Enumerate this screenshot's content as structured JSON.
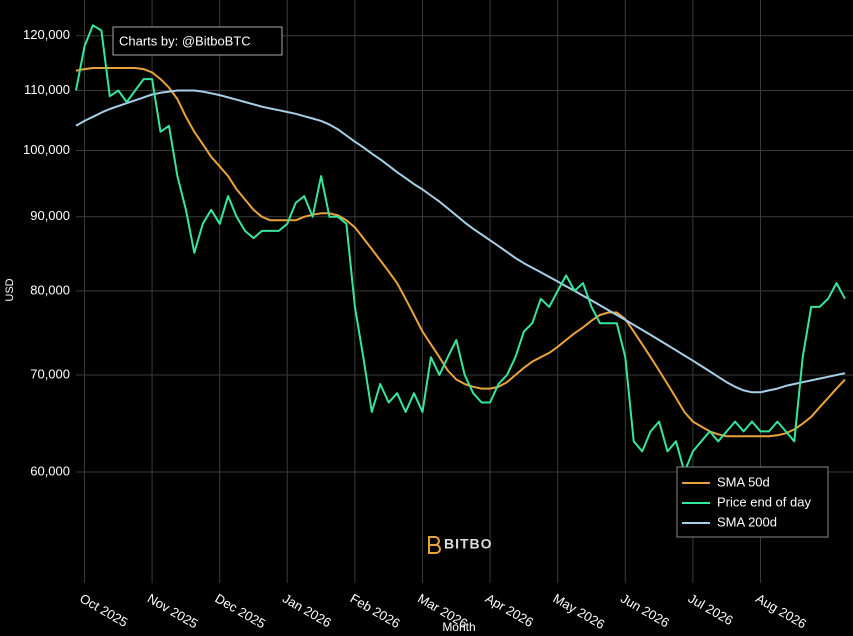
{
  "chart_data": {
    "type": "line",
    "annotation": "Charts by: @BitboBTC",
    "watermark": "BITBO",
    "ylabel": "USD",
    "xlabel": "Month",
    "yscale": "log",
    "grid": true,
    "legend": "lower right",
    "ylim": [
      50300,
      127000
    ],
    "yticks": [
      {
        "value": 60000,
        "label": "60,000"
      },
      {
        "value": 70000,
        "label": "70,000"
      },
      {
        "value": 80000,
        "label": "80,000"
      },
      {
        "value": 90000,
        "label": "90,000"
      },
      {
        "value": 100000,
        "label": "100,000"
      },
      {
        "value": 110000,
        "label": "110,000"
      },
      {
        "value": 120000,
        "label": "120,000"
      }
    ],
    "categories": [
      null,
      "Oct 2025",
      null,
      null,
      null,
      null,
      null,
      null,
      null,
      "Nov 2025",
      null,
      null,
      null,
      null,
      null,
      null,
      null,
      "Dec 2025",
      null,
      null,
      null,
      null,
      null,
      null,
      null,
      "Jan 2026",
      null,
      null,
      null,
      null,
      null,
      null,
      null,
      "Feb 2026",
      null,
      null,
      null,
      null,
      null,
      null,
      null,
      "Mar 2026",
      null,
      null,
      null,
      null,
      null,
      null,
      null,
      "Apr 2026",
      null,
      null,
      null,
      null,
      null,
      null,
      null,
      "May 2026",
      null,
      null,
      null,
      null,
      null,
      null,
      null,
      "Jun 2026",
      null,
      null,
      null,
      null,
      null,
      null,
      null,
      "Jul 2026",
      null,
      null,
      null,
      null,
      null,
      null,
      null,
      "Aug 2026",
      null,
      null,
      null,
      null,
      null,
      null,
      null,
      null,
      null,
      null
    ],
    "series": [
      {
        "name": "SMA 50d",
        "color": "#e8a33b",
        "values": [
          113500,
          113800,
          114000,
          114000,
          114000,
          114000,
          114000,
          114000,
          113800,
          113200,
          112000,
          110500,
          108500,
          105500,
          103000,
          101000,
          99000,
          97500,
          96000,
          94000,
          92500,
          91000,
          90000,
          89500,
          89500,
          89500,
          89500,
          90000,
          90300,
          90500,
          90500,
          90200,
          89500,
          88500,
          87000,
          85500,
          84000,
          82500,
          81000,
          79000,
          77000,
          75000,
          73500,
          72000,
          70500,
          69500,
          69000,
          68700,
          68500,
          68500,
          68700,
          69200,
          70000,
          70800,
          71500,
          72000,
          72500,
          73200,
          74000,
          74800,
          75500,
          76300,
          77000,
          77300,
          77300,
          76500,
          75000,
          73500,
          72000,
          70500,
          69000,
          67500,
          66000,
          65000,
          64500,
          64000,
          63700,
          63500,
          63500,
          63500,
          63500,
          63500,
          63500,
          63600,
          63800,
          64200,
          64800,
          65500,
          66500,
          67500,
          68500,
          69500
        ]
      },
      {
        "name": "Price end of day",
        "color": "#35e69b",
        "values": [
          110000,
          118000,
          122000,
          121000,
          109000,
          110000,
          108000,
          110000,
          112000,
          112000,
          103000,
          104000,
          96000,
          91000,
          85000,
          89000,
          91000,
          89000,
          93000,
          90000,
          88000,
          87000,
          88000,
          88000,
          88000,
          89000,
          92000,
          93000,
          90000,
          96000,
          90000,
          90000,
          89000,
          78000,
          72000,
          66000,
          69000,
          67000,
          68000,
          66000,
          68000,
          66000,
          72000,
          70000,
          72000,
          74000,
          70000,
          68000,
          67000,
          67000,
          69000,
          70000,
          72000,
          75000,
          76000,
          79000,
          78000,
          80000,
          82000,
          80000,
          81000,
          78000,
          76000,
          76000,
          76000,
          72000,
          63000,
          62000,
          64000,
          65000,
          62000,
          63000,
          60000,
          62000,
          63000,
          64000,
          63000,
          64000,
          65000,
          64000,
          65000,
          64000,
          64000,
          65000,
          64000,
          63000,
          72000,
          78000,
          78000,
          79000,
          81000,
          79000
        ]
      },
      {
        "name": "SMA 200d",
        "color": "#a6cfe8",
        "values": [
          104000,
          104800,
          105500,
          106200,
          106800,
          107300,
          107800,
          108300,
          108800,
          109300,
          109600,
          109800,
          110000,
          110000,
          110000,
          109800,
          109500,
          109200,
          108800,
          108400,
          108000,
          107600,
          107200,
          106900,
          106600,
          106300,
          106000,
          105600,
          105200,
          104800,
          104200,
          103400,
          102400,
          101400,
          100500,
          99500,
          98600,
          97600,
          96600,
          95700,
          94800,
          94000,
          93100,
          92200,
          91200,
          90200,
          89200,
          88300,
          87500,
          86700,
          85900,
          85100,
          84300,
          83600,
          83000,
          82400,
          81800,
          81200,
          80600,
          80000,
          79400,
          78800,
          78200,
          77600,
          77000,
          76400,
          75800,
          75200,
          74600,
          74000,
          73400,
          72800,
          72200,
          71600,
          71000,
          70400,
          69800,
          69200,
          68700,
          68300,
          68100,
          68100,
          68300,
          68500,
          68800,
          69000,
          69200,
          69400,
          69600,
          69800,
          70000,
          70200
        ]
      }
    ]
  }
}
